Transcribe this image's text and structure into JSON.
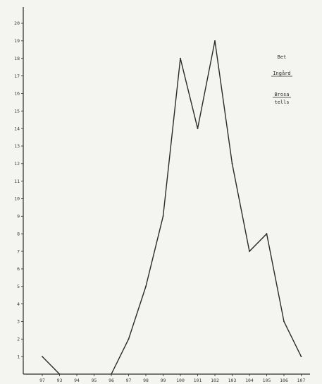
{
  "chart_data": {
    "type": "line",
    "title": "",
    "xlabel": "",
    "ylabel": "",
    "categories": [
      "97",
      "93",
      "94",
      "95",
      "96",
      "97",
      "98",
      "99",
      "100",
      "101",
      "102",
      "103",
      "104",
      "105",
      "106",
      "107"
    ],
    "series": [
      {
        "values": [
          1,
          0,
          null,
          null,
          0,
          2,
          5,
          9,
          18,
          14,
          19,
          12,
          7,
          8,
          3,
          1
        ]
      }
    ],
    "ylim": [
      0,
      20
    ],
    "y_ticks": [
      1,
      2,
      3,
      4,
      5,
      6,
      7,
      8,
      9,
      10,
      11,
      12,
      13,
      14,
      15,
      16,
      17,
      18,
      19,
      20
    ],
    "grid": false,
    "legend_position": "top-right",
    "legend_lines": [
      "Bet",
      "Ingård",
      "Brosa",
      "tells"
    ],
    "line_color": "#2a2a2a"
  }
}
